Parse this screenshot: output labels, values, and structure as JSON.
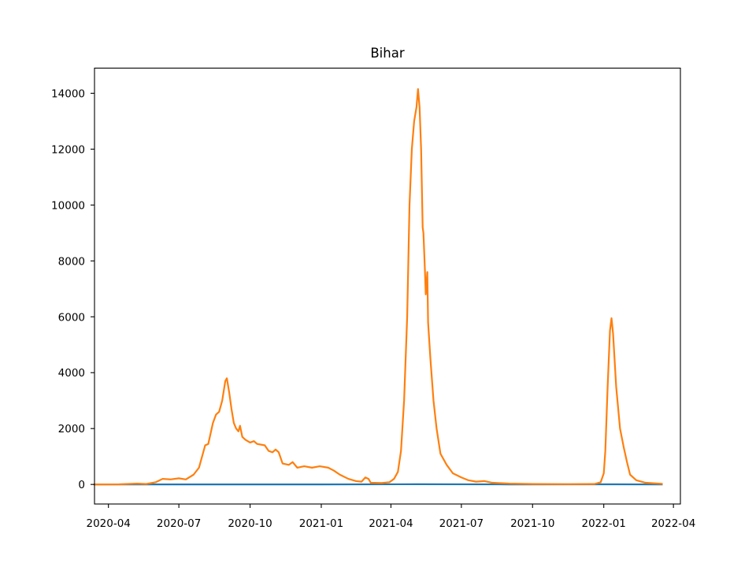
{
  "chart_data": {
    "type": "line",
    "title": "Bihar",
    "xlabel": "",
    "ylabel": "",
    "xlim": [
      "2020-03-14",
      "2022-04-10"
    ],
    "ylim": [
      -700,
      14900
    ],
    "x_ticks": [
      "2020-04",
      "2020-07",
      "2020-10",
      "2021-01",
      "2021-04",
      "2021-07",
      "2021-10",
      "2022-01",
      "2022-04"
    ],
    "y_ticks": [
      0,
      2000,
      4000,
      6000,
      8000,
      10000,
      12000,
      14000
    ],
    "y_tick_labels": [
      "0",
      "2000",
      "4000",
      "6000",
      "8000",
      "10000",
      "12000",
      "14000"
    ],
    "grid": false,
    "series": [
      {
        "color": "#1f77b4",
        "points": [
          [
            "2020-03-14",
            0
          ],
          [
            "2021-01-01",
            2
          ],
          [
            "2021-05-05",
            8
          ],
          [
            "2021-09-01",
            2
          ],
          [
            "2022-01-18",
            5
          ],
          [
            "2022-03-17",
            0
          ]
        ]
      },
      {
        "color": "#ff7f0e",
        "points": [
          [
            "2020-03-14",
            0
          ],
          [
            "2020-04-15",
            5
          ],
          [
            "2020-05-08",
            30
          ],
          [
            "2020-05-20",
            15
          ],
          [
            "2020-06-01",
            80
          ],
          [
            "2020-06-10",
            200
          ],
          [
            "2020-06-20",
            180
          ],
          [
            "2020-07-01",
            220
          ],
          [
            "2020-07-10",
            180
          ],
          [
            "2020-07-20",
            350
          ],
          [
            "2020-07-27",
            600
          ],
          [
            "2020-08-01",
            1100
          ],
          [
            "2020-08-04",
            1400
          ],
          [
            "2020-08-08",
            1450
          ],
          [
            "2020-08-14",
            2200
          ],
          [
            "2020-08-18",
            2500
          ],
          [
            "2020-08-22",
            2600
          ],
          [
            "2020-08-26",
            3000
          ],
          [
            "2020-08-30",
            3700
          ],
          [
            "2020-09-01",
            3800
          ],
          [
            "2020-09-04",
            3300
          ],
          [
            "2020-09-07",
            2700
          ],
          [
            "2020-09-10",
            2200
          ],
          [
            "2020-09-13",
            2000
          ],
          [
            "2020-09-16",
            1900
          ],
          [
            "2020-09-18",
            2100
          ],
          [
            "2020-09-21",
            1700
          ],
          [
            "2020-09-25",
            1600
          ],
          [
            "2020-10-01",
            1500
          ],
          [
            "2020-10-06",
            1550
          ],
          [
            "2020-10-10",
            1450
          ],
          [
            "2020-10-20",
            1400
          ],
          [
            "2020-10-25",
            1200
          ],
          [
            "2020-10-30",
            1150
          ],
          [
            "2020-11-03",
            1250
          ],
          [
            "2020-11-07",
            1150
          ],
          [
            "2020-11-12",
            750
          ],
          [
            "2020-11-20",
            700
          ],
          [
            "2020-11-25",
            800
          ],
          [
            "2020-12-01",
            600
          ],
          [
            "2020-12-10",
            650
          ],
          [
            "2020-12-20",
            600
          ],
          [
            "2020-12-30",
            650
          ],
          [
            "2021-01-10",
            600
          ],
          [
            "2021-01-17",
            500
          ],
          [
            "2021-01-25",
            350
          ],
          [
            "2021-02-05",
            200
          ],
          [
            "2021-02-15",
            120
          ],
          [
            "2021-02-22",
            100
          ],
          [
            "2021-02-27",
            250
          ],
          [
            "2021-03-03",
            200
          ],
          [
            "2021-03-06",
            60
          ],
          [
            "2021-03-20",
            50
          ],
          [
            "2021-03-30",
            80
          ],
          [
            "2021-04-05",
            200
          ],
          [
            "2021-04-10",
            450
          ],
          [
            "2021-04-14",
            1200
          ],
          [
            "2021-04-18",
            3000
          ],
          [
            "2021-04-22",
            6000
          ],
          [
            "2021-04-25",
            10000
          ],
          [
            "2021-04-28",
            12000
          ],
          [
            "2021-05-01",
            13000
          ],
          [
            "2021-05-04",
            13500
          ],
          [
            "2021-05-06",
            14150
          ],
          [
            "2021-05-08",
            13500
          ],
          [
            "2021-05-10",
            12000
          ],
          [
            "2021-05-12",
            9200
          ],
          [
            "2021-05-13",
            9000
          ],
          [
            "2021-05-15",
            7600
          ],
          [
            "2021-05-16",
            6800
          ],
          [
            "2021-05-18",
            7600
          ],
          [
            "2021-05-19",
            5800
          ],
          [
            "2021-05-22",
            4500
          ],
          [
            "2021-05-26",
            3000
          ],
          [
            "2021-05-30",
            2000
          ],
          [
            "2021-06-04",
            1100
          ],
          [
            "2021-06-12",
            700
          ],
          [
            "2021-06-20",
            400
          ],
          [
            "2021-07-01",
            250
          ],
          [
            "2021-07-10",
            150
          ],
          [
            "2021-07-20",
            100
          ],
          [
            "2021-07-31",
            120
          ],
          [
            "2021-08-10",
            60
          ],
          [
            "2021-09-01",
            30
          ],
          [
            "2021-10-01",
            15
          ],
          [
            "2021-11-15",
            10
          ],
          [
            "2021-12-20",
            15
          ],
          [
            "2021-12-28",
            80
          ],
          [
            "2022-01-01",
            400
          ],
          [
            "2022-01-03",
            1200
          ],
          [
            "2022-01-06",
            3500
          ],
          [
            "2022-01-09",
            5500
          ],
          [
            "2022-01-11",
            5950
          ],
          [
            "2022-01-13",
            5400
          ],
          [
            "2022-01-17",
            3500
          ],
          [
            "2022-01-22",
            2000
          ],
          [
            "2022-01-27",
            1300
          ],
          [
            "2022-01-31",
            800
          ],
          [
            "2022-02-04",
            350
          ],
          [
            "2022-02-12",
            150
          ],
          [
            "2022-02-24",
            60
          ],
          [
            "2022-03-17",
            20
          ]
        ]
      }
    ]
  }
}
